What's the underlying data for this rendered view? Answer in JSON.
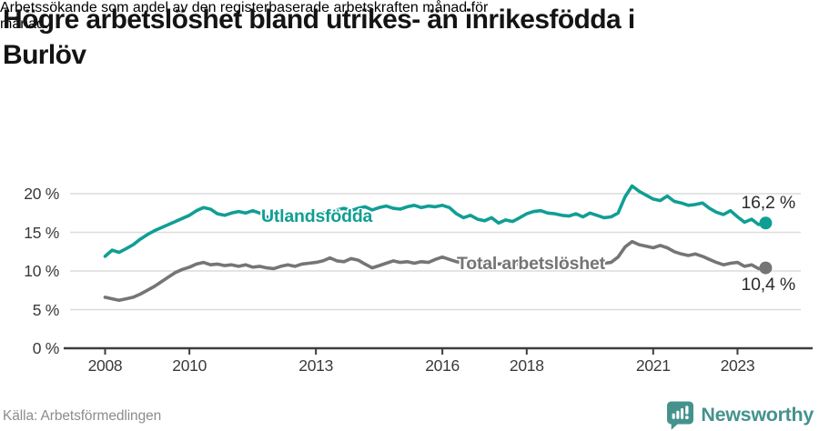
{
  "header": {
    "title_lines": [
      "Högre arbetslöshet bland utrikes- än inrikesfödda i",
      "Burlöv"
    ],
    "subtitle_lines": [
      "Arbetssökande som andel av den registerbaserade arbetskraften månad för",
      "månad."
    ]
  },
  "footer": {
    "source": "Källa: Arbetsförmedlingen",
    "brand": "Newsworthy",
    "brand_icon": "newsworthy-speech-bubble-bar-chart-icon",
    "brand_color": "#45928d"
  },
  "colors": {
    "background": "#ffffff",
    "series_foreign_born": "#109e94",
    "series_total": "#757575",
    "gridline": "#dcdcdc",
    "axis": "#3d3d3d",
    "tick_text": "#3a3a3a",
    "value_text": "#2b2b2b",
    "title_text": "#141414",
    "source_text": "#8c8c8c"
  },
  "chart_data": {
    "type": "line",
    "title": "Högre arbetslöshet bland utrikes- än inrikesfödda i Burlöv",
    "subtitle": "Arbetssökande som andel av den registerbaserade arbetskraften månad för månad.",
    "xlabel": "",
    "ylabel": "",
    "x_unit": "decimal_year",
    "x_start": 2008.0,
    "x_step": 0.16667,
    "xlim": [
      2007.8,
      2024.2
    ],
    "ylim": [
      0,
      21.5
    ],
    "grid": "horizontal",
    "legend_position": "inline-labels",
    "y_ticks": [
      {
        "v": 0,
        "label": "0 %"
      },
      {
        "v": 5,
        "label": "5 %"
      },
      {
        "v": 10,
        "label": "10 %"
      },
      {
        "v": 15,
        "label": "15 %"
      },
      {
        "v": 20,
        "label": "20 %"
      }
    ],
    "x_ticks": [
      {
        "v": 2008,
        "label": "2008"
      },
      {
        "v": 2010,
        "label": "2010"
      },
      {
        "v": 2013,
        "label": "2013"
      },
      {
        "v": 2016,
        "label": "2016"
      },
      {
        "v": 2018,
        "label": "2018"
      },
      {
        "v": 2021,
        "label": "2021"
      },
      {
        "v": 2023,
        "label": "2023"
      }
    ],
    "series": [
      {
        "name": "Utlandsfödda",
        "color": "#109e94",
        "end_label": "16,2 %",
        "end_value": 16.2,
        "values": [
          11.9,
          12.7,
          12.4,
          12.9,
          13.4,
          14.1,
          14.7,
          15.2,
          15.6,
          16.0,
          16.4,
          16.8,
          17.2,
          17.8,
          18.2,
          18.0,
          17.4,
          17.2,
          17.5,
          17.7,
          17.5,
          17.8,
          17.5,
          17.0,
          16.7,
          17.1,
          17.5,
          17.2,
          17.4,
          17.2,
          17.4,
          17.5,
          17.7,
          17.9,
          18.1,
          17.8,
          18.1,
          18.3,
          17.9,
          18.2,
          18.4,
          18.1,
          18.0,
          18.3,
          18.5,
          18.2,
          18.4,
          18.3,
          18.5,
          18.2,
          17.4,
          16.9,
          17.2,
          16.7,
          16.5,
          16.9,
          16.2,
          16.6,
          16.4,
          16.9,
          17.4,
          17.7,
          17.8,
          17.5,
          17.4,
          17.2,
          17.1,
          17.4,
          17.0,
          17.5,
          17.2,
          16.9,
          17.0,
          17.5,
          19.6,
          21.0,
          20.3,
          19.8,
          19.3,
          19.1,
          19.7,
          19.0,
          18.8,
          18.5,
          18.6,
          18.8,
          18.1,
          17.6,
          17.3,
          17.8,
          17.0,
          16.3,
          16.7,
          16.0,
          16.2
        ]
      },
      {
        "name": "Total arbetslöshet",
        "color": "#757575",
        "end_label": "10,4 %",
        "end_value": 10.4,
        "values": [
          6.6,
          6.4,
          6.2,
          6.4,
          6.6,
          7.0,
          7.5,
          8.0,
          8.6,
          9.2,
          9.8,
          10.2,
          10.5,
          10.9,
          11.1,
          10.8,
          10.9,
          10.7,
          10.8,
          10.6,
          10.8,
          10.5,
          10.6,
          10.4,
          10.3,
          10.6,
          10.8,
          10.6,
          10.9,
          11.0,
          11.1,
          11.3,
          11.7,
          11.3,
          11.2,
          11.6,
          11.4,
          10.9,
          10.4,
          10.7,
          11.0,
          11.3,
          11.1,
          11.2,
          11.0,
          11.2,
          11.1,
          11.5,
          11.8,
          11.5,
          11.2,
          11.0,
          11.1,
          10.9,
          11.0,
          11.1,
          10.9,
          11.0,
          10.8,
          10.9,
          11.0,
          11.2,
          11.1,
          11.0,
          11.1,
          10.9,
          11.0,
          11.1,
          10.9,
          11.0,
          11.1,
          11.0,
          11.1,
          11.8,
          13.1,
          13.8,
          13.4,
          13.2,
          13.0,
          13.3,
          13.0,
          12.5,
          12.2,
          12.0,
          12.2,
          11.9,
          11.5,
          11.1,
          10.8,
          11.0,
          11.1,
          10.6,
          10.8,
          10.3,
          10.4
        ]
      }
    ]
  }
}
